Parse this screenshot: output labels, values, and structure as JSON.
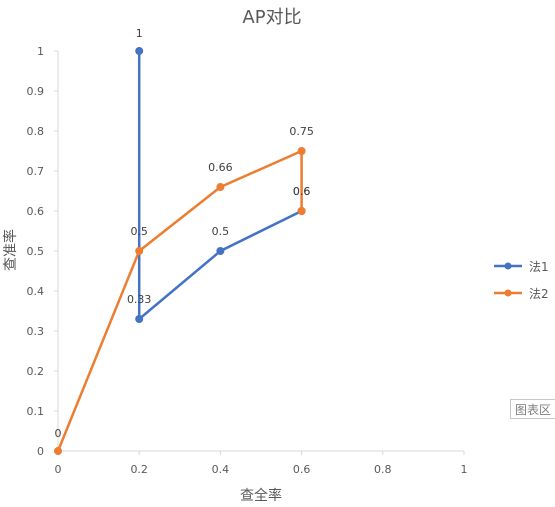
{
  "chart_data": {
    "type": "scatter-line",
    "title": "AP对比",
    "xlabel": "查全率",
    "ylabel": "查准率",
    "xlim": [
      0,
      1
    ],
    "ylim": [
      0,
      1
    ],
    "xticks": [
      "0",
      "0.2",
      "0.4",
      "0.6",
      "0.8",
      "1"
    ],
    "yticks": [
      "0",
      "0.1",
      "0.2",
      "0.3",
      "0.4",
      "0.5",
      "0.6",
      "0.7",
      "0.8",
      "0.9",
      "1"
    ],
    "legend_position": "right",
    "series": [
      {
        "name": "法1",
        "color": "#4472c4",
        "points": [
          [
            0.2,
            1
          ],
          [
            0.2,
            0.33
          ],
          [
            0.4,
            0.5
          ],
          [
            0.6,
            0.6
          ]
        ],
        "labels": [
          "1",
          "0.33",
          "0.5",
          "0.6"
        ]
      },
      {
        "name": "法2",
        "color": "#ed7d31",
        "points": [
          [
            0,
            0
          ],
          [
            0.2,
            0.5
          ],
          [
            0.4,
            0.66
          ],
          [
            0.6,
            0.75
          ],
          [
            0.6,
            0.6
          ]
        ],
        "labels": [
          "0",
          "0.5",
          "0.66",
          "0.75",
          "0.6"
        ]
      }
    ]
  },
  "tooltip": "图表区"
}
